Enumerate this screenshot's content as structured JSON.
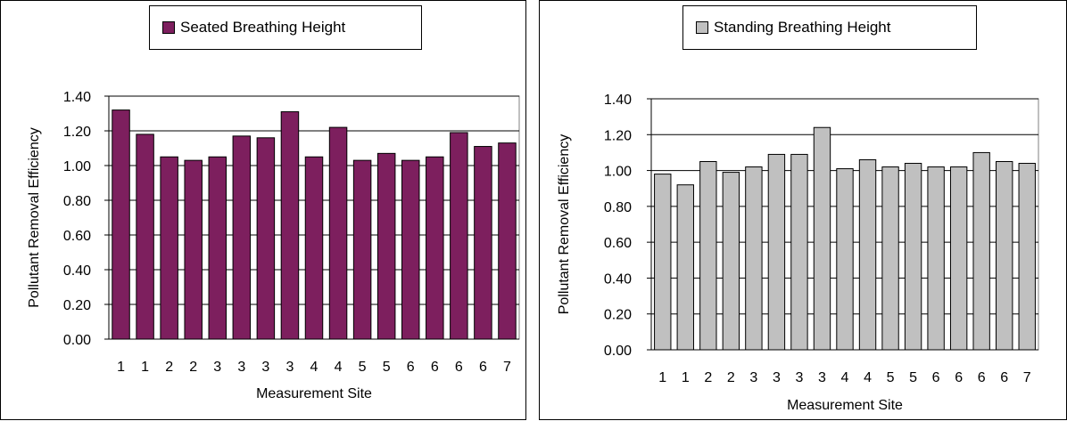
{
  "chart_data": [
    {
      "type": "bar",
      "categories": [
        "1",
        "1",
        "2",
        "2",
        "3",
        "3",
        "3",
        "3",
        "4",
        "4",
        "5",
        "5",
        "6",
        "6",
        "6",
        "6",
        "7"
      ],
      "series": [
        {
          "name": "Seated Breathing Height",
          "values": [
            1.32,
            1.18,
            1.05,
            1.03,
            1.05,
            1.17,
            1.16,
            1.31,
            1.05,
            1.22,
            1.03,
            1.07,
            1.03,
            1.05,
            1.19,
            1.11,
            1.13
          ]
        }
      ],
      "xlabel": "Measurement Site",
      "ylabel": "Pollutant Removal Efficiency",
      "ylim": [
        0,
        1.4
      ],
      "yticks": [
        "0.00",
        "0.20",
        "0.40",
        "0.60",
        "0.80",
        "1.00",
        "1.20",
        "1.40"
      ],
      "grid": true,
      "legend_position": "top",
      "colors": {
        "bar": "#7d1f5e",
        "background": "#ffffff",
        "grid": "#000000"
      }
    },
    {
      "type": "bar",
      "categories": [
        "1",
        "1",
        "2",
        "2",
        "3",
        "3",
        "3",
        "3",
        "4",
        "4",
        "5",
        "5",
        "6",
        "6",
        "6",
        "6",
        "7"
      ],
      "series": [
        {
          "name": "Standing Breathing Height",
          "values": [
            0.98,
            0.92,
            1.05,
            0.99,
            1.02,
            1.09,
            1.09,
            1.24,
            1.01,
            1.06,
            1.02,
            1.04,
            1.02,
            1.02,
            1.1,
            1.05,
            1.04
          ]
        }
      ],
      "xlabel": "Measurement Site",
      "ylabel": "Pollutant Removal Efficiency",
      "ylim": [
        0,
        1.4
      ],
      "yticks": [
        "0.00",
        "0.20",
        "0.40",
        "0.60",
        "0.80",
        "1.00",
        "1.20",
        "1.40"
      ],
      "grid": true,
      "legend_position": "top",
      "colors": {
        "bar": "#c0c0c0",
        "background": "#ffffff",
        "grid": "#000000"
      }
    }
  ]
}
